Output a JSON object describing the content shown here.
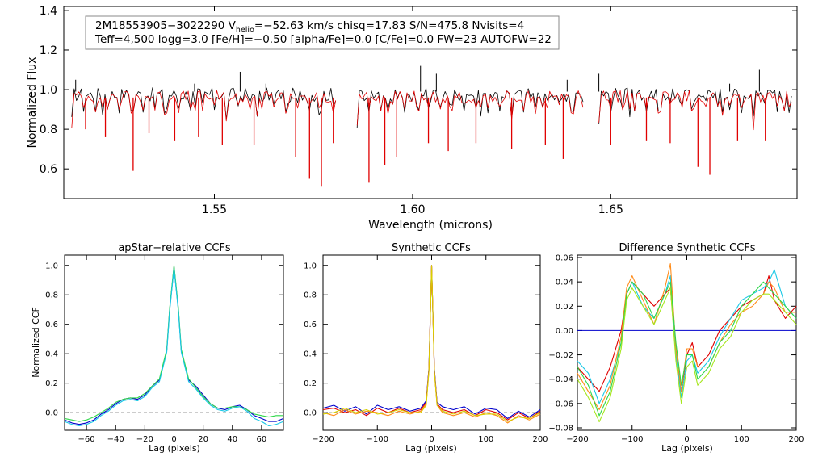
{
  "colors": {
    "black": "#000000",
    "red": "#e00000",
    "blue": "#0000cc",
    "cyan": "#19c8e6",
    "green": "#2fd84a",
    "lime": "#a6e61e",
    "orange": "#ff8c1a",
    "yellow": "#d8d000",
    "dashed": "#777777"
  },
  "chart_data": [
    {
      "id": "spectrum",
      "type": "line",
      "title": "",
      "xlabel": "Wavelength (microns)",
      "ylabel": "Normalized Flux",
      "xlim": [
        1.512,
        1.697
      ],
      "ylim": [
        0.45,
        1.42
      ],
      "xticks": [
        1.55,
        1.6,
        1.65
      ],
      "xtick_labels": [
        "1.55",
        "1.60",
        "1.65"
      ],
      "yticks": [
        0.6,
        0.8,
        1.0,
        1.2,
        1.4
      ],
      "ytick_labels": [
        "0.6",
        "0.8",
        "1.0",
        "1.2",
        "1.4"
      ],
      "annotation": {
        "line1_a": "2M18553905−3022290  V",
        "line1_sub": "helio",
        "line1_b": "=−52.63 km/s  chisq=17.83  S/N=475.8  Nvisits=4",
        "line2": "Teff=4,500 logg=3.0 [Fe/H]=−0.50 [alpha/Fe]=0.0 [C/Fe]=0.0 FW=23 AUTOFW=22"
      },
      "chips": [
        [
          1.514,
          1.581
        ],
        [
          1.586,
          1.643
        ],
        [
          1.647,
          1.696
        ]
      ],
      "series": [
        {
          "color_key": "black",
          "role": "observed spectrum"
        },
        {
          "color_key": "red",
          "role": "model spectrum"
        }
      ],
      "absorption_lines": [
        {
          "x": 1.5175,
          "y": 0.8
        },
        {
          "x": 1.5225,
          "y": 0.76
        },
        {
          "x": 1.5295,
          "y": 0.59
        },
        {
          "x": 1.5335,
          "y": 0.78
        },
        {
          "x": 1.54,
          "y": 0.74
        },
        {
          "x": 1.546,
          "y": 0.76
        },
        {
          "x": 1.552,
          "y": 0.72
        },
        {
          "x": 1.56,
          "y": 0.72
        },
        {
          "x": 1.5705,
          "y": 0.66
        },
        {
          "x": 1.574,
          "y": 0.55
        },
        {
          "x": 1.577,
          "y": 0.51
        },
        {
          "x": 1.58,
          "y": 0.73
        },
        {
          "x": 1.589,
          "y": 0.53
        },
        {
          "x": 1.593,
          "y": 0.62
        },
        {
          "x": 1.596,
          "y": 0.66
        },
        {
          "x": 1.604,
          "y": 0.73
        },
        {
          "x": 1.609,
          "y": 0.69
        },
        {
          "x": 1.616,
          "y": 0.73
        },
        {
          "x": 1.625,
          "y": 0.7
        },
        {
          "x": 1.6335,
          "y": 0.72
        },
        {
          "x": 1.638,
          "y": 0.65
        },
        {
          "x": 1.65,
          "y": 0.72
        },
        {
          "x": 1.659,
          "y": 0.74
        },
        {
          "x": 1.665,
          "y": 0.73
        },
        {
          "x": 1.672,
          "y": 0.61
        },
        {
          "x": 1.675,
          "y": 0.57
        },
        {
          "x": 1.682,
          "y": 0.74
        },
        {
          "x": 1.689,
          "y": 0.74
        }
      ],
      "emission_spikes": [
        {
          "x": 1.515,
          "y": 1.05
        },
        {
          "x": 1.545,
          "y": 1.03
        },
        {
          "x": 1.5565,
          "y": 1.09
        },
        {
          "x": 1.563,
          "y": 1.03
        },
        {
          "x": 1.602,
          "y": 1.12
        },
        {
          "x": 1.606,
          "y": 1.08
        },
        {
          "x": 1.639,
          "y": 1.05
        },
        {
          "x": 1.647,
          "y": 1.08
        },
        {
          "x": 1.68,
          "y": 1.03
        },
        {
          "x": 1.6875,
          "y": 1.1
        }
      ]
    },
    {
      "id": "apstar_ccf",
      "type": "line",
      "title": "apStar−relative CCFs",
      "xlabel": "Lag (pixels)",
      "ylabel": "Normalized CCF",
      "xlim": [
        -75,
        75
      ],
      "ylim": [
        -0.12,
        1.07
      ],
      "xticks": [
        -60,
        -40,
        -20,
        0,
        20,
        40,
        60
      ],
      "xtick_labels": [
        "−60",
        "−40",
        "−20",
        "0",
        "20",
        "40",
        "60"
      ],
      "yticks": [
        0.0,
        0.2,
        0.4,
        0.6,
        0.8,
        1.0
      ],
      "ytick_labels": [
        "0.0",
        "0.2",
        "0.4",
        "0.6",
        "0.8",
        "1.0"
      ],
      "baseline": 0.0,
      "series": [
        {
          "color_key": "blue",
          "x": [
            -75,
            -70,
            -65,
            -60,
            -55,
            -50,
            -45,
            -40,
            -35,
            -30,
            -25,
            -20,
            -15,
            -10,
            -5,
            -3,
            0,
            3,
            5,
            10,
            15,
            20,
            25,
            30,
            35,
            40,
            45,
            50,
            55,
            60,
            65,
            70,
            75
          ],
          "y": [
            -0.05,
            -0.07,
            -0.08,
            -0.07,
            -0.05,
            -0.01,
            0.02,
            0.06,
            0.09,
            0.1,
            0.09,
            0.12,
            0.18,
            0.22,
            0.42,
            0.7,
            0.99,
            0.7,
            0.42,
            0.22,
            0.18,
            0.12,
            0.06,
            0.03,
            0.02,
            0.04,
            0.05,
            0.02,
            -0.02,
            -0.04,
            -0.06,
            -0.06,
            -0.04
          ]
        },
        {
          "color_key": "green",
          "x": [
            -75,
            -70,
            -65,
            -60,
            -55,
            -50,
            -45,
            -40,
            -35,
            -30,
            -25,
            -20,
            -15,
            -10,
            -5,
            -3,
            0,
            3,
            5,
            10,
            15,
            20,
            25,
            30,
            35,
            40,
            45,
            50,
            55,
            60,
            65,
            70,
            75
          ],
          "y": [
            -0.04,
            -0.05,
            -0.06,
            -0.05,
            -0.03,
            0.0,
            0.03,
            0.07,
            0.09,
            0.1,
            0.1,
            0.13,
            0.18,
            0.23,
            0.43,
            0.71,
            1.0,
            0.71,
            0.43,
            0.23,
            0.17,
            0.11,
            0.06,
            0.03,
            0.03,
            0.04,
            0.04,
            0.02,
            -0.01,
            -0.02,
            -0.03,
            -0.02,
            -0.02
          ]
        },
        {
          "color_key": "cyan",
          "x": [
            -75,
            -70,
            -65,
            -60,
            -55,
            -50,
            -45,
            -40,
            -35,
            -30,
            -25,
            -20,
            -15,
            -10,
            -5,
            -3,
            0,
            3,
            5,
            10,
            15,
            20,
            25,
            30,
            35,
            40,
            45,
            50,
            55,
            60,
            65,
            70,
            75
          ],
          "y": [
            -0.06,
            -0.08,
            -0.09,
            -0.08,
            -0.06,
            -0.02,
            0.01,
            0.05,
            0.08,
            0.09,
            0.08,
            0.11,
            0.17,
            0.21,
            0.41,
            0.69,
            0.98,
            0.69,
            0.41,
            0.21,
            0.16,
            0.1,
            0.05,
            0.02,
            0.01,
            0.03,
            0.04,
            0.01,
            -0.04,
            -0.06,
            -0.09,
            -0.08,
            -0.06
          ]
        }
      ]
    },
    {
      "id": "synthetic_ccf",
      "type": "line",
      "title": "Synthetic CCFs",
      "xlabel": "Lag (pixels)",
      "ylabel": "",
      "xlim": [
        -200,
        200
      ],
      "ylim": [
        -0.12,
        1.07
      ],
      "xticks": [
        -200,
        -100,
        0,
        100,
        200
      ],
      "xtick_labels": [
        "−200",
        "−100",
        "0",
        "100",
        "200"
      ],
      "yticks": [
        0.0,
        0.2,
        0.4,
        0.6,
        0.8,
        1.0
      ],
      "ytick_labels": [
        "0.0",
        "0.2",
        "0.4",
        "0.6",
        "0.8",
        "1.0"
      ],
      "baseline": 0.0,
      "series": [
        {
          "color_key": "blue",
          "x": [
            -200,
            -180,
            -160,
            -140,
            -120,
            -100,
            -80,
            -60,
            -40,
            -20,
            -10,
            -5,
            0,
            5,
            10,
            20,
            40,
            60,
            80,
            100,
            120,
            140,
            160,
            180,
            200
          ],
          "y": [
            0.03,
            0.05,
            0.01,
            0.04,
            -0.01,
            0.05,
            0.02,
            0.04,
            0.01,
            0.03,
            0.08,
            0.3,
            1.0,
            0.3,
            0.07,
            0.04,
            0.02,
            0.04,
            -0.01,
            0.03,
            0.02,
            -0.04,
            0.01,
            -0.03,
            0.02
          ]
        },
        {
          "color_key": "red",
          "x": [
            -200,
            -180,
            -160,
            -140,
            -120,
            -100,
            -80,
            -60,
            -40,
            -20,
            -10,
            -5,
            0,
            5,
            10,
            20,
            40,
            60,
            80,
            100,
            120,
            140,
            160,
            180,
            200
          ],
          "y": [
            0.02,
            0.03,
            0.0,
            0.02,
            -0.02,
            0.03,
            0.0,
            0.03,
            0.0,
            0.02,
            0.07,
            0.29,
            1.0,
            0.29,
            0.06,
            0.02,
            0.0,
            0.02,
            -0.02,
            0.02,
            0.0,
            -0.05,
            0.0,
            -0.04,
            0.01
          ]
        },
        {
          "color_key": "orange",
          "x": [
            -200,
            -180,
            -160,
            -140,
            -120,
            -100,
            -80,
            -60,
            -40,
            -20,
            -10,
            -5,
            0,
            5,
            10,
            20,
            40,
            60,
            80,
            100,
            120,
            140,
            160,
            180,
            200
          ],
          "y": [
            0.0,
            -0.02,
            0.02,
            -0.01,
            0.01,
            0.0,
            -0.02,
            0.01,
            -0.01,
            0.01,
            0.06,
            0.28,
            1.0,
            0.28,
            0.05,
            0.0,
            -0.02,
            0.0,
            -0.03,
            0.0,
            -0.02,
            -0.07,
            -0.02,
            -0.05,
            -0.01
          ]
        },
        {
          "color_key": "yellow",
          "x": [
            -200,
            -180,
            -160,
            -140,
            -120,
            -100,
            -80,
            -60,
            -40,
            -20,
            -10,
            -5,
            0,
            5,
            10,
            20,
            40,
            60,
            80,
            100,
            120,
            140,
            160,
            180,
            200
          ],
          "y": [
            -0.01,
            0.0,
            0.03,
            0.0,
            0.02,
            -0.01,
            0.0,
            0.02,
            0.0,
            0.0,
            0.05,
            0.28,
            1.0,
            0.28,
            0.05,
            0.01,
            -0.01,
            0.01,
            -0.02,
            -0.01,
            -0.01,
            -0.06,
            -0.03,
            -0.04,
            0.0
          ]
        }
      ]
    },
    {
      "id": "difference_ccf",
      "type": "line",
      "title": "Difference Synthetic CCFs",
      "xlabel": "Lag (pixels)",
      "ylabel": "",
      "xlim": [
        -200,
        200
      ],
      "ylim": [
        -0.082,
        0.062
      ],
      "xticks": [
        -200,
        -100,
        0,
        100,
        200
      ],
      "xtick_labels": [
        "−200",
        "−100",
        "0",
        "100",
        "200"
      ],
      "yticks": [
        -0.08,
        -0.06,
        -0.04,
        -0.02,
        0.0,
        0.02,
        0.04,
        0.06
      ],
      "ytick_labels": [
        "−0.08",
        "−0.06",
        "−0.04",
        "−0.02",
        "0.00",
        "0.02",
        "0.04",
        "0.06"
      ],
      "zero_line_color_key": "blue",
      "series": [
        {
          "color_key": "red",
          "x": [
            -200,
            -180,
            -160,
            -140,
            -120,
            -110,
            -100,
            -80,
            -60,
            -40,
            -30,
            -20,
            -10,
            0,
            10,
            20,
            40,
            60,
            80,
            100,
            120,
            140,
            150,
            160,
            180,
            200
          ],
          "y": [
            -0.03,
            -0.04,
            -0.05,
            -0.03,
            0.0,
            0.03,
            0.04,
            0.03,
            0.02,
            0.03,
            0.035,
            -0.02,
            -0.05,
            -0.02,
            -0.01,
            -0.03,
            -0.02,
            0.0,
            0.01,
            0.02,
            0.025,
            0.03,
            0.045,
            0.025,
            0.01,
            0.02
          ]
        },
        {
          "color_key": "cyan",
          "x": [
            -200,
            -180,
            -160,
            -140,
            -120,
            -110,
            -100,
            -80,
            -60,
            -40,
            -30,
            -20,
            -10,
            0,
            10,
            20,
            40,
            60,
            80,
            100,
            120,
            140,
            150,
            160,
            180,
            200
          ],
          "y": [
            -0.025,
            -0.035,
            -0.06,
            -0.04,
            -0.01,
            0.03,
            0.04,
            0.02,
            0.01,
            0.03,
            0.045,
            -0.02,
            -0.055,
            -0.025,
            -0.02,
            -0.035,
            -0.025,
            -0.005,
            0.01,
            0.025,
            0.03,
            0.035,
            0.04,
            0.05,
            0.02,
            0.01
          ]
        },
        {
          "color_key": "orange",
          "x": [
            -200,
            -180,
            -160,
            -140,
            -120,
            -110,
            -100,
            -80,
            -60,
            -40,
            -30,
            -20,
            -10,
            0,
            10,
            20,
            40,
            60,
            80,
            100,
            120,
            140,
            150,
            160,
            180,
            200
          ],
          "y": [
            -0.035,
            -0.05,
            -0.065,
            -0.045,
            -0.005,
            0.035,
            0.045,
            0.025,
            0.005,
            0.035,
            0.055,
            -0.015,
            -0.05,
            -0.015,
            -0.015,
            -0.03,
            -0.03,
            -0.01,
            0.005,
            0.015,
            0.02,
            0.03,
            0.04,
            0.035,
            0.015,
            0.015
          ]
        },
        {
          "color_key": "green",
          "x": [
            -200,
            -180,
            -160,
            -140,
            -120,
            -110,
            -100,
            -80,
            -60,
            -40,
            -30,
            -20,
            -10,
            0,
            10,
            20,
            40,
            60,
            80,
            100,
            120,
            140,
            150,
            160,
            180,
            200
          ],
          "y": [
            -0.03,
            -0.045,
            -0.07,
            -0.05,
            -0.01,
            0.03,
            0.04,
            0.03,
            0.01,
            0.03,
            0.04,
            -0.01,
            -0.045,
            -0.02,
            -0.02,
            -0.04,
            -0.03,
            -0.01,
            0.0,
            0.02,
            0.03,
            0.04,
            0.035,
            0.03,
            0.02,
            0.01
          ]
        },
        {
          "color_key": "lime",
          "x": [
            -200,
            -180,
            -160,
            -140,
            -120,
            -110,
            -100,
            -80,
            -60,
            -40,
            -30,
            -20,
            -10,
            0,
            10,
            20,
            40,
            60,
            80,
            100,
            120,
            140,
            150,
            160,
            180,
            200
          ],
          "y": [
            -0.04,
            -0.055,
            -0.075,
            -0.055,
            -0.015,
            0.025,
            0.035,
            0.02,
            0.005,
            0.025,
            0.035,
            -0.025,
            -0.06,
            -0.03,
            -0.025,
            -0.045,
            -0.035,
            -0.015,
            -0.005,
            0.015,
            0.025,
            0.03,
            0.03,
            0.025,
            0.015,
            0.005
          ]
        }
      ]
    }
  ]
}
